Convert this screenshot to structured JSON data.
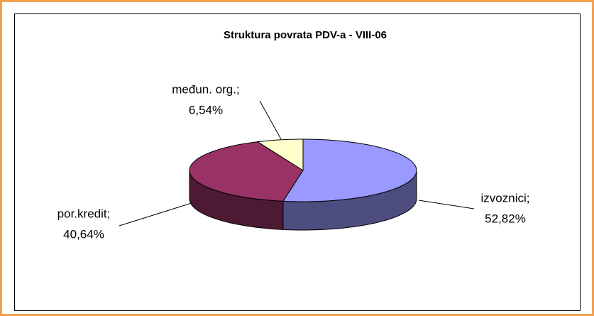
{
  "chart_data": {
    "type": "pie3d",
    "title": "Struktura povrata PDV-a - VIII-06",
    "categories": [
      "izvoznici;",
      "por.kredit;",
      "međun. org.;"
    ],
    "values": [
      52.82,
      40.64,
      6.54
    ],
    "value_labels": [
      "52,82%",
      "40,64%",
      "6,54%"
    ],
    "colors": [
      "#9999ff",
      "#993366",
      "#ffffcc"
    ]
  }
}
